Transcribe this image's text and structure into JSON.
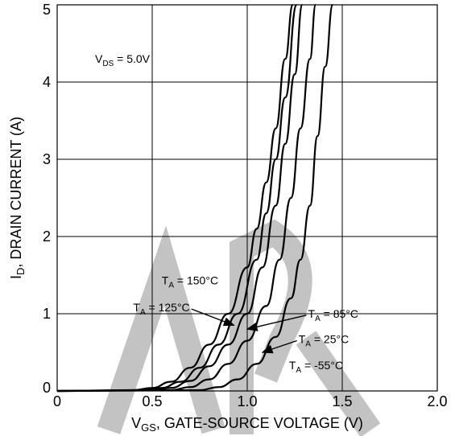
{
  "chart_data": {
    "type": "line",
    "xlabel_prefix": "V",
    "xlabel_sub": "GS",
    "xlabel_rest": ", GATE-SOURCE VOLTAGE (V)",
    "ylabel_prefix": "I",
    "ylabel_sub": "D",
    "ylabel_rest": ", DRAIN CURRENT (A)",
    "xlim": [
      0,
      2.0
    ],
    "ylim": [
      0,
      5
    ],
    "x_ticks": [
      {
        "value": 0,
        "label": "0"
      },
      {
        "value": 0.5,
        "label": "0.5"
      },
      {
        "value": 1.0,
        "label": "1.0"
      },
      {
        "value": 1.5,
        "label": "1.5"
      },
      {
        "value": 2.0,
        "label": "2.0"
      }
    ],
    "y_ticks": [
      {
        "value": 0,
        "label": "0"
      },
      {
        "value": 1,
        "label": "1"
      },
      {
        "value": 2,
        "label": "2"
      },
      {
        "value": 3,
        "label": "3"
      },
      {
        "value": 4,
        "label": "4"
      },
      {
        "value": 5,
        "label": "5"
      }
    ],
    "grid": true,
    "condition": {
      "prefix": "V",
      "sub": "DS",
      "rest": " = 5.0V"
    },
    "series": [
      {
        "name": "T_A = 150°C",
        "points": [
          [
            0.0,
            0.0
          ],
          [
            0.4,
            0.01
          ],
          [
            0.5,
            0.04
          ],
          [
            0.6,
            0.12
          ],
          [
            0.7,
            0.3
          ],
          [
            0.8,
            0.6
          ],
          [
            0.9,
            1.0
          ],
          [
            1.0,
            1.6
          ],
          [
            1.05,
            2.1
          ],
          [
            1.1,
            2.7
          ],
          [
            1.15,
            3.4
          ],
          [
            1.2,
            4.3
          ],
          [
            1.24,
            5.0
          ]
        ]
      },
      {
        "name": "T_A = 125°C",
        "points": [
          [
            0.0,
            0.0
          ],
          [
            0.45,
            0.01
          ],
          [
            0.55,
            0.04
          ],
          [
            0.65,
            0.12
          ],
          [
            0.75,
            0.3
          ],
          [
            0.85,
            0.6
          ],
          [
            0.95,
            1.0
          ],
          [
            1.05,
            1.7
          ],
          [
            1.1,
            2.3
          ],
          [
            1.15,
            3.0
          ],
          [
            1.2,
            3.8
          ],
          [
            1.26,
            5.0
          ]
        ]
      },
      {
        "name": "T_A = 85°C",
        "points": [
          [
            0.0,
            0.0
          ],
          [
            0.5,
            0.01
          ],
          [
            0.6,
            0.04
          ],
          [
            0.7,
            0.13
          ],
          [
            0.8,
            0.32
          ],
          [
            0.9,
            0.6
          ],
          [
            1.0,
            1.0
          ],
          [
            1.08,
            1.6
          ],
          [
            1.15,
            2.4
          ],
          [
            1.2,
            3.2
          ],
          [
            1.25,
            4.1
          ],
          [
            1.29,
            5.0
          ]
        ]
      },
      {
        "name": "T_A = 25°C",
        "points": [
          [
            0.0,
            0.0
          ],
          [
            0.6,
            0.01
          ],
          [
            0.7,
            0.05
          ],
          [
            0.8,
            0.15
          ],
          [
            0.9,
            0.35
          ],
          [
            1.0,
            0.65
          ],
          [
            1.1,
            1.1
          ],
          [
            1.17,
            1.7
          ],
          [
            1.23,
            2.5
          ],
          [
            1.28,
            3.4
          ],
          [
            1.33,
            4.3
          ],
          [
            1.36,
            5.0
          ]
        ]
      },
      {
        "name": "T_A = -55°C",
        "points": [
          [
            0.0,
            0.0
          ],
          [
            0.75,
            0.01
          ],
          [
            0.85,
            0.05
          ],
          [
            0.95,
            0.15
          ],
          [
            1.05,
            0.35
          ],
          [
            1.15,
            0.7
          ],
          [
            1.23,
            1.2
          ],
          [
            1.28,
            1.7
          ],
          [
            1.33,
            2.4
          ],
          [
            1.37,
            3.3
          ],
          [
            1.41,
            4.2
          ],
          [
            1.45,
            5.0
          ]
        ]
      }
    ],
    "annotations": [
      {
        "prefix": "T",
        "sub": "A",
        "rest": " = 150°C",
        "x": 0.55,
        "y": 1.38,
        "arrow": false
      },
      {
        "prefix": "T",
        "sub": "A",
        "rest": " = 125°C",
        "x": 0.4,
        "y": 1.03,
        "arrow": true,
        "arrow_to": [
          0.93,
          0.85
        ]
      },
      {
        "prefix": "T",
        "sub": "A",
        "rest": " = 85°C",
        "x": 1.32,
        "y": 0.95,
        "arrow": true,
        "arrow_to": [
          1.0,
          0.8
        ]
      },
      {
        "prefix": "T",
        "sub": "A",
        "rest": " = 25°C",
        "x": 1.27,
        "y": 0.62,
        "arrow": true,
        "arrow_to": [
          1.08,
          0.5
        ]
      },
      {
        "prefix": "T",
        "sub": "A",
        "rest": " = -55°C",
        "x": 1.22,
        "y": 0.28,
        "arrow": false
      }
    ]
  }
}
